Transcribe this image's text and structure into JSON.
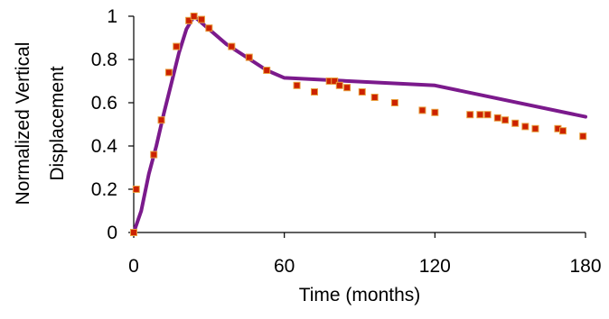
{
  "chart_data": {
    "type": "scatter",
    "title": "",
    "xlabel": "Time (months)",
    "ylabel_lines": [
      "Normalized Vertical",
      "Displacement"
    ],
    "xlim": [
      0,
      180
    ],
    "ylim": [
      0,
      1
    ],
    "xticks": [
      0,
      60,
      120,
      180
    ],
    "yticks": [
      0,
      0.2,
      0.4,
      0.6,
      0.8,
      1
    ],
    "ytick_labels": [
      "0",
      "0.2",
      "0.4",
      "0.6",
      "0.8",
      "1"
    ],
    "grid": false,
    "legend": "none",
    "series": [
      {
        "kind": "points",
        "color": "#cc2200",
        "edge_color": "#e8a040",
        "points": [
          [
            0,
            0.0
          ],
          [
            1,
            0.2
          ],
          [
            8,
            0.36
          ],
          [
            11,
            0.52
          ],
          [
            14,
            0.74
          ],
          [
            17,
            0.86
          ],
          [
            22,
            0.98
          ],
          [
            24,
            1.0
          ],
          [
            27,
            0.985
          ],
          [
            30,
            0.945
          ],
          [
            39,
            0.86
          ],
          [
            46,
            0.81
          ],
          [
            53,
            0.75
          ],
          [
            65,
            0.68
          ],
          [
            72,
            0.65
          ],
          [
            78,
            0.7
          ],
          [
            80,
            0.7
          ],
          [
            82,
            0.68
          ],
          [
            85,
            0.67
          ],
          [
            91,
            0.65
          ],
          [
            96,
            0.625
          ],
          [
            104,
            0.6
          ],
          [
            115,
            0.565
          ],
          [
            120,
            0.555
          ],
          [
            134,
            0.545
          ],
          [
            138,
            0.545
          ],
          [
            141,
            0.545
          ],
          [
            145,
            0.53
          ],
          [
            148,
            0.52
          ],
          [
            152,
            0.505
          ],
          [
            156,
            0.49
          ],
          [
            160,
            0.48
          ],
          [
            169,
            0.48
          ],
          [
            171,
            0.47
          ],
          [
            179,
            0.445
          ]
        ]
      },
      {
        "kind": "line",
        "color": "#7b1a8c",
        "points": [
          [
            0,
            0.0
          ],
          [
            3,
            0.1
          ],
          [
            6,
            0.27
          ],
          [
            9,
            0.4
          ],
          [
            12,
            0.55
          ],
          [
            15,
            0.69
          ],
          [
            18,
            0.83
          ],
          [
            21,
            0.94
          ],
          [
            24,
            1.0
          ],
          [
            30,
            0.94
          ],
          [
            37,
            0.87
          ],
          [
            45,
            0.81
          ],
          [
            53,
            0.75
          ],
          [
            60,
            0.715
          ],
          [
            120,
            0.68
          ],
          [
            180,
            0.535
          ]
        ]
      }
    ]
  }
}
